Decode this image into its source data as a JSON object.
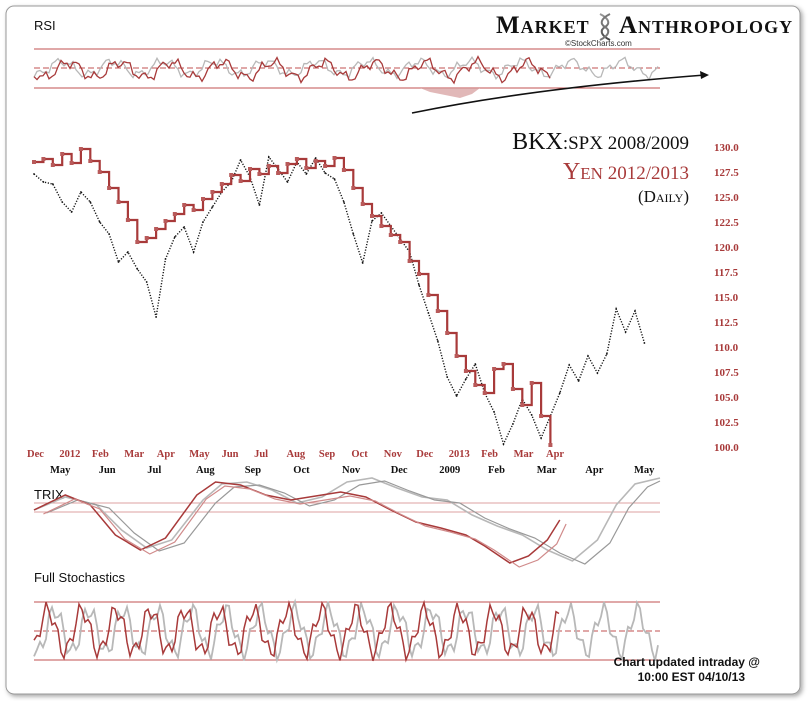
{
  "header": {
    "brand_word1": "Market",
    "brand_word2": "Anthropology",
    "credit": "©StockCharts.com",
    "logo_icon": "dna-helix-icon"
  },
  "panels": {
    "rsi_label": "RSI",
    "trix_label": "TRIX",
    "stoch_label": "Full Stochastics"
  },
  "legend": {
    "bkx_main": "BKX",
    "bkx_rest": ":SPX 2008/2009",
    "yen_main": "Yen",
    "yen_rest": " 2012/2013",
    "daily": "(Daily)"
  },
  "footer": {
    "line1": "Chart updated intraday @",
    "line2": "10:00 EST 04/10/13"
  },
  "colors": {
    "yen": "#a83a3a",
    "bkx": "#111111",
    "grid": "#c05050",
    "indicator_gray": "#b8b8b8"
  },
  "chart_data": {
    "type": "line",
    "title": "",
    "ylim": [
      100.0,
      130.0
    ],
    "y_ticks": [
      "130.0",
      "127.5",
      "125.0",
      "122.5",
      "120.0",
      "117.5",
      "115.0",
      "112.5",
      "110.0",
      "107.5",
      "105.0",
      "102.5",
      "100.0"
    ],
    "x_ticks_yen": [
      "Dec",
      "2012",
      "Feb",
      "Mar",
      "Apr",
      "May",
      "Jun",
      "Jul",
      "Aug",
      "Sep",
      "Oct",
      "Nov",
      "Dec",
      "2013",
      "Feb",
      "Mar",
      "Apr"
    ],
    "x_ticks_bkx": [
      "May",
      "Jun",
      "Jul",
      "Aug",
      "Sep",
      "Oct",
      "Nov",
      "Dec",
      "2009",
      "Feb",
      "Mar",
      "Apr",
      "May"
    ],
    "series": [
      {
        "name": "Yen 2012/2013",
        "style": "red-step",
        "x_frac": [
          0.0,
          0.015,
          0.03,
          0.045,
          0.06,
          0.075,
          0.09,
          0.105,
          0.12,
          0.135,
          0.15,
          0.165,
          0.18,
          0.195,
          0.21,
          0.225,
          0.24,
          0.255,
          0.27,
          0.285,
          0.3,
          0.315,
          0.33,
          0.345,
          0.36,
          0.375,
          0.39,
          0.405,
          0.42,
          0.435,
          0.45,
          0.465,
          0.48,
          0.495,
          0.51,
          0.525,
          0.54,
          0.555,
          0.57,
          0.585,
          0.6,
          0.615,
          0.63,
          0.645,
          0.66,
          0.675,
          0.69,
          0.705,
          0.72,
          0.735,
          0.75,
          0.765,
          0.78,
          0.795,
          0.81,
          0.825
        ],
        "values": [
          128.5,
          128.8,
          128.2,
          129.3,
          128.4,
          129.8,
          128.6,
          127.5,
          125.9,
          124.5,
          122.7,
          120.5,
          120.9,
          121.8,
          122.6,
          123.3,
          124.2,
          123.7,
          124.8,
          125.5,
          126.3,
          127.2,
          126.6,
          127.8,
          127.3,
          128.1,
          127.4,
          128.3,
          128.8,
          127.9,
          128.6,
          128.1,
          128.9,
          127.7,
          125.9,
          124.3,
          123.1,
          122.1,
          121.2,
          120.5,
          118.6,
          117.3,
          115.2,
          113.6,
          111.4,
          109.1,
          107.6,
          106.2,
          105.4,
          107.8,
          108.3,
          105.8,
          104.2,
          106.4,
          103.1,
          100.2
        ]
      },
      {
        "name": "BKX:SPX 2008/2009",
        "style": "black-dotted",
        "x_frac": [
          0.0,
          0.015,
          0.03,
          0.045,
          0.06,
          0.075,
          0.09,
          0.105,
          0.12,
          0.135,
          0.15,
          0.165,
          0.18,
          0.195,
          0.21,
          0.225,
          0.24,
          0.255,
          0.27,
          0.285,
          0.3,
          0.315,
          0.33,
          0.345,
          0.36,
          0.375,
          0.39,
          0.405,
          0.42,
          0.435,
          0.45,
          0.465,
          0.48,
          0.495,
          0.51,
          0.525,
          0.54,
          0.555,
          0.57,
          0.585,
          0.6,
          0.615,
          0.63,
          0.645,
          0.66,
          0.675,
          0.69,
          0.705,
          0.72,
          0.735,
          0.75,
          0.765,
          0.78,
          0.795,
          0.81,
          0.825,
          0.84,
          0.855,
          0.87,
          0.885,
          0.9,
          0.915,
          0.93,
          0.945,
          0.96,
          0.975
        ],
        "values": [
          127.3,
          126.5,
          126.3,
          124.5,
          123.5,
          125.5,
          124.5,
          122.5,
          121.3,
          118.5,
          119.5,
          117.8,
          116.5,
          113.0,
          118.8,
          121.0,
          122.0,
          119.5,
          122.5,
          124.0,
          125.5,
          126.5,
          128.7,
          127.0,
          124.2,
          129.0,
          127.8,
          126.5,
          128.5,
          127.3,
          128.9,
          127.4,
          126.8,
          124.5,
          121.3,
          118.4,
          122.6,
          123.4,
          122.1,
          120.8,
          119.5,
          116.2,
          113.4,
          110.6,
          107.0,
          105.1,
          106.8,
          108.3,
          105.4,
          103.5,
          100.3,
          102.3,
          104.8,
          103.2,
          100.9,
          103.1,
          105.4,
          108.2,
          106.6,
          109.1,
          107.4,
          109.3,
          113.8,
          111.5,
          113.6,
          110.4
        ]
      }
    ]
  }
}
